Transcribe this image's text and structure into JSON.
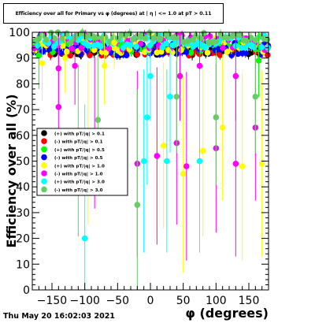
{
  "chart_data": {
    "type": "scatter",
    "title": "Efficiency over all for Primary vs φ (degrees) at | η | <= 1.0 at pT > 0.11",
    "xlabel": "φ (degrees)",
    "ylabel": "Efficiency over all (%)",
    "xlim": [
      -180,
      180
    ],
    "ylim": [
      0,
      100
    ],
    "xticks": [
      "−150",
      "−100",
      "−50",
      "0",
      "50",
      "100",
      "150"
    ],
    "yticks": [
      "0",
      "10",
      "20",
      "30",
      "40",
      "50",
      "60",
      "70",
      "80",
      "90",
      "100"
    ],
    "legend_position": "middle-left",
    "grid": false,
    "series": [
      {
        "name": "(+) with pT/|q| > 0.1",
        "color": "#000000",
        "band": [
          91,
          95
        ],
        "points": []
      },
      {
        "name": "(-) with pT/|q| > 0.1",
        "color": "#ff0000",
        "band": [
          91,
          95
        ],
        "points": []
      },
      {
        "name": "(+) with pT/|q| > 0.5",
        "color": "#00ff00",
        "band": [
          92,
          97
        ],
        "points": [
          [
            -170,
            91
          ],
          [
            165,
            89
          ]
        ]
      },
      {
        "name": "(-) with pT/|q| > 0.5",
        "color": "#0000ff",
        "band": [
          91,
          96
        ],
        "points": []
      },
      {
        "name": "(+) with pT/|q| > 1.0",
        "color": "#ffff00",
        "band": [
          92,
          98
        ],
        "points": [
          [
            -165,
            88
          ],
          [
            -130,
            90
          ],
          [
            -95,
            57
          ],
          [
            -70,
            87
          ],
          [
            -55,
            96
          ],
          [
            10,
            52
          ],
          [
            20,
            56
          ],
          [
            50,
            45
          ],
          [
            80,
            54
          ],
          [
            110,
            63
          ],
          [
            140,
            48
          ],
          [
            170,
            49
          ]
        ]
      },
      {
        "name": "(-) with pT/|q| > 1.0",
        "color": "#ff00ff",
        "band": [
          93,
          99
        ],
        "points": [
          [
            -140,
            86
          ],
          [
            -140,
            71
          ],
          [
            -115,
            87
          ],
          [
            -85,
            61
          ],
          [
            -20,
            49
          ],
          [
            10,
            52
          ],
          [
            40,
            57
          ],
          [
            45,
            83
          ],
          [
            55,
            48
          ],
          [
            75,
            87
          ],
          [
            100,
            55
          ],
          [
            130,
            83
          ],
          [
            130,
            49
          ],
          [
            160,
            63
          ]
        ]
      },
      {
        "name": "(+) with pT/|q| > 3.0",
        "color": "#00ffff",
        "band": [
          94,
          99
        ],
        "points": [
          [
            -100,
            20
          ],
          [
            -10,
            50
          ],
          [
            -5,
            67
          ],
          [
            0,
            83
          ],
          [
            25,
            50
          ],
          [
            30,
            75
          ],
          [
            75,
            50
          ]
        ]
      },
      {
        "name": "(-) with pT/|q| > 3.0",
        "color": "#66cc66",
        "band": [
          96,
          100
        ],
        "points": [
          [
            -110,
            54
          ],
          [
            -80,
            66
          ],
          [
            -20,
            33
          ],
          [
            40,
            75
          ],
          [
            100,
            67
          ],
          [
            160,
            75
          ]
        ]
      }
    ]
  },
  "footer": {
    "date": "Thu May 20 16:02:03 2021"
  }
}
